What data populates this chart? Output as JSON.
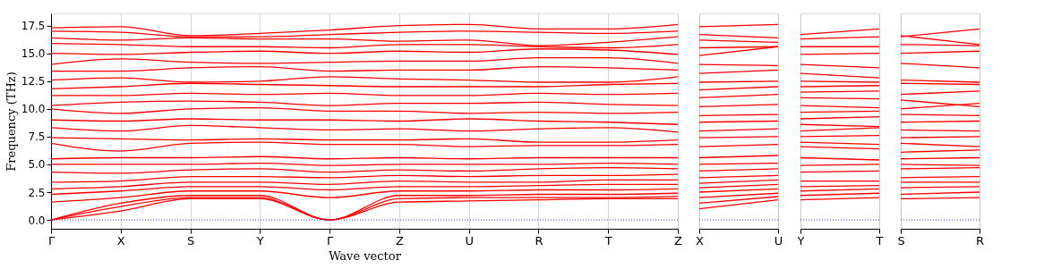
{
  "chart_data": [
    {
      "type": "line",
      "ylabel": "Frequency (THz)",
      "xlabel": "Wave vector",
      "categories": [
        "Γ",
        "X",
        "S",
        "Y",
        "Γ",
        "Z",
        "U",
        "R",
        "T",
        "Z"
      ],
      "ylim": [
        -0.8,
        18.6
      ],
      "yticks": [
        {
          "value": 0,
          "label": "0.0"
        },
        2.5,
        {
          "value": 5,
          "label": "5.0"
        },
        7.5,
        {
          "value": 10,
          "label": "10.0"
        },
        12.5,
        {
          "value": 15,
          "label": "15.0"
        },
        17.5
      ],
      "grid": "x",
      "line_style": "solid",
      "ref_lines": [
        {
          "axis": "y",
          "value": 0,
          "color": "#0000ff",
          "line_style": "dotted"
        }
      ],
      "series": [
        {
          "color": "#ff0000",
          "values": [
            0,
            0.8,
            1.9,
            1.9,
            0,
            1.6,
            1.7,
            1.8,
            1.9,
            1.9
          ]
        },
        {
          "color": "#ff0000",
          "values": [
            0,
            1.2,
            2.0,
            2.0,
            0,
            1.9,
            2.0,
            2.0,
            2.0,
            2.1
          ]
        },
        {
          "color": "#ff0000",
          "values": [
            0,
            1.5,
            2.2,
            2.2,
            0,
            2.2,
            2.2,
            2.3,
            2.3,
            2.4
          ]
        },
        {
          "color": "#ff0000",
          "values": [
            1.6,
            2.0,
            2.6,
            2.6,
            2.0,
            2.6,
            2.6,
            2.7,
            2.7,
            2.8
          ]
        },
        {
          "color": "#ff0000",
          "values": [
            2.3,
            2.6,
            3.0,
            3.0,
            2.7,
            3.0,
            3.0,
            3.1,
            3.2,
            3.2
          ]
        },
        {
          "color": "#ff0000",
          "values": [
            2.8,
            3.0,
            3.4,
            3.4,
            3.2,
            3.5,
            3.4,
            3.4,
            3.6,
            3.6
          ]
        },
        {
          "color": "#ff0000",
          "values": [
            3.4,
            3.5,
            3.9,
            3.9,
            3.8,
            4.0,
            3.9,
            4.0,
            4.0,
            4.1
          ]
        },
        {
          "color": "#ff0000",
          "values": [
            4.3,
            4.2,
            4.5,
            4.6,
            4.3,
            4.5,
            4.4,
            4.6,
            4.7,
            4.6
          ]
        },
        {
          "color": "#ff0000",
          "values": [
            5.0,
            5.0,
            5.0,
            5.1,
            4.9,
            5.0,
            5.0,
            5.0,
            5.1,
            5.0
          ]
        },
        {
          "color": "#ff0000",
          "values": [
            5.5,
            5.6,
            5.6,
            5.7,
            5.5,
            5.6,
            5.5,
            5.6,
            5.6,
            5.6
          ]
        },
        {
          "color": "#ff0000",
          "values": [
            6.9,
            6.2,
            6.9,
            7.0,
            6.8,
            6.8,
            6.6,
            6.7,
            6.7,
            6.8
          ]
        },
        {
          "color": "#ff0000",
          "values": [
            7.4,
            7.3,
            7.2,
            7.3,
            7.2,
            7.2,
            7.3,
            7.0,
            7.0,
            7.2
          ]
        },
        {
          "color": "#ff0000",
          "values": [
            8.3,
            8.0,
            8.5,
            8.3,
            8.1,
            8.2,
            8.0,
            8.2,
            8.3,
            7.9
          ]
        },
        {
          "color": "#ff0000",
          "values": [
            9.0,
            8.9,
            9.1,
            9.0,
            9.0,
            8.9,
            9.1,
            8.9,
            8.8,
            8.6
          ]
        },
        {
          "color": "#ff0000",
          "values": [
            10.0,
            9.6,
            10.0,
            10.1,
            9.8,
            9.8,
            9.6,
            9.7,
            9.6,
            9.7
          ]
        },
        {
          "color": "#ff0000",
          "values": [
            10.3,
            10.6,
            10.7,
            10.6,
            10.3,
            10.5,
            10.5,
            10.6,
            10.4,
            10.3
          ]
        },
        {
          "color": "#ff0000",
          "values": [
            11.2,
            11.2,
            11.4,
            11.3,
            11.4,
            11.2,
            11.2,
            11.4,
            11.3,
            11.4
          ]
        },
        {
          "color": "#ff0000",
          "values": [
            11.8,
            12.0,
            12.3,
            12.2,
            12.1,
            12.0,
            12.0,
            12.0,
            12.2,
            12.3
          ]
        },
        {
          "color": "#ff0000",
          "values": [
            12.6,
            12.8,
            12.4,
            12.5,
            12.9,
            12.7,
            12.6,
            12.4,
            12.4,
            12.9
          ]
        },
        {
          "color": "#ff0000",
          "values": [
            13.4,
            13.4,
            13.7,
            13.8,
            13.4,
            13.5,
            13.5,
            13.8,
            13.7,
            13.5
          ]
        },
        {
          "color": "#ff0000",
          "values": [
            14.0,
            14.5,
            14.2,
            14.1,
            14.2,
            14.3,
            14.3,
            14.6,
            14.6,
            14.1
          ]
        },
        {
          "color": "#ff0000",
          "values": [
            15.0,
            14.9,
            15.1,
            15.2,
            15.0,
            15.2,
            15.1,
            15.4,
            15.3,
            14.9
          ]
        },
        {
          "color": "#ff0000",
          "values": [
            15.9,
            15.8,
            15.6,
            15.6,
            15.5,
            15.8,
            15.8,
            15.6,
            15.5,
            15.8
          ]
        },
        {
          "color": "#ff0000",
          "values": [
            16.4,
            16.2,
            16.4,
            16.3,
            16.3,
            16.1,
            16.2,
            15.7,
            16.0,
            16.5
          ]
        },
        {
          "color": "#ff0000",
          "values": [
            17.0,
            16.9,
            16.5,
            16.5,
            16.7,
            16.9,
            17.0,
            16.9,
            16.8,
            17.0
          ]
        },
        {
          "color": "#ff0000",
          "values": [
            17.3,
            17.4,
            16.6,
            16.8,
            17.1,
            17.5,
            17.6,
            17.2,
            17.2,
            17.6
          ]
        }
      ]
    },
    {
      "type": "line",
      "categories": [
        "X",
        "U"
      ],
      "ylim": [
        -0.8,
        18.6
      ],
      "yticks": [
        0,
        2.5,
        5,
        7.5,
        10,
        12.5,
        15,
        17.5
      ],
      "tick_labels": "x",
      "grid": "x",
      "line_style": "solid",
      "ref_lines": [
        {
          "axis": "y",
          "value": 0,
          "color": "#0000ff",
          "line_style": "dotted"
        }
      ],
      "series": [
        {
          "color": "#ff0000",
          "values": [
            1.0,
            1.8
          ]
        },
        {
          "color": "#ff0000",
          "values": [
            1.5,
            2.1
          ]
        },
        {
          "color": "#ff0000",
          "values": [
            2.0,
            2.4
          ]
        },
        {
          "color": "#ff0000",
          "values": [
            2.5,
            2.8
          ]
        },
        {
          "color": "#ff0000",
          "values": [
            2.9,
            3.2
          ]
        },
        {
          "color": "#ff0000",
          "values": [
            3.3,
            3.6
          ]
        },
        {
          "color": "#ff0000",
          "values": [
            3.8,
            4.0
          ]
        },
        {
          "color": "#ff0000",
          "values": [
            4.4,
            4.6
          ]
        },
        {
          "color": "#ff0000",
          "values": [
            5.0,
            5.1
          ]
        },
        {
          "color": "#ff0000",
          "values": [
            5.6,
            5.8
          ]
        },
        {
          "color": "#ff0000",
          "values": [
            6.6,
            6.8
          ]
        },
        {
          "color": "#ff0000",
          "values": [
            7.4,
            7.5
          ]
        },
        {
          "color": "#ff0000",
          "values": [
            8.0,
            8.2
          ]
        },
        {
          "color": "#ff0000",
          "values": [
            8.8,
            8.9
          ]
        },
        {
          "color": "#ff0000",
          "values": [
            9.4,
            9.5
          ]
        },
        {
          "color": "#ff0000",
          "values": [
            10.2,
            10.4
          ]
        },
        {
          "color": "#ff0000",
          "values": [
            11.0,
            11.3
          ]
        },
        {
          "color": "#ff0000",
          "values": [
            11.7,
            12.0
          ]
        },
        {
          "color": "#ff0000",
          "values": [
            12.4,
            12.5
          ]
        },
        {
          "color": "#ff0000",
          "values": [
            13.2,
            13.5
          ]
        },
        {
          "color": "#ff0000",
          "values": [
            14.0,
            13.9
          ]
        },
        {
          "color": "#ff0000",
          "values": [
            14.8,
            15.6
          ]
        },
        {
          "color": "#ff0000",
          "values": [
            15.5,
            15.6
          ]
        },
        {
          "color": "#ff0000",
          "values": [
            16.2,
            16.0
          ]
        },
        {
          "color": "#ff0000",
          "values": [
            16.7,
            16.4
          ]
        },
        {
          "color": "#ff0000",
          "values": [
            17.4,
            17.6
          ]
        }
      ]
    },
    {
      "type": "line",
      "categories": [
        "Y",
        "T"
      ],
      "ylim": [
        -0.8,
        18.6
      ],
      "yticks": [
        0,
        2.5,
        5,
        7.5,
        10,
        12.5,
        15,
        17.5
      ],
      "tick_labels": "x",
      "grid": "x",
      "line_style": "solid",
      "ref_lines": [
        {
          "axis": "y",
          "value": 0,
          "color": "#0000ff",
          "line_style": "dotted"
        }
      ],
      "series": [
        {
          "color": "#ff0000",
          "values": [
            1.8,
            2.0
          ]
        },
        {
          "color": "#ff0000",
          "values": [
            2.2,
            2.4
          ]
        },
        {
          "color": "#ff0000",
          "values": [
            2.6,
            2.8
          ]
        },
        {
          "color": "#ff0000",
          "values": [
            3.0,
            3.1
          ]
        },
        {
          "color": "#ff0000",
          "values": [
            3.5,
            3.5
          ]
        },
        {
          "color": "#ff0000",
          "values": [
            4.3,
            4.4
          ]
        },
        {
          "color": "#ff0000",
          "values": [
            4.9,
            5.0
          ]
        },
        {
          "color": "#ff0000",
          "values": [
            5.6,
            5.4
          ]
        },
        {
          "color": "#ff0000",
          "values": [
            6.6,
            6.4
          ]
        },
        {
          "color": "#ff0000",
          "values": [
            7.0,
            6.8
          ]
        },
        {
          "color": "#ff0000",
          "values": [
            7.5,
            7.6
          ]
        },
        {
          "color": "#ff0000",
          "values": [
            8.0,
            8.3
          ]
        },
        {
          "color": "#ff0000",
          "values": [
            8.6,
            8.4
          ]
        },
        {
          "color": "#ff0000",
          "values": [
            9.1,
            9.3
          ]
        },
        {
          "color": "#ff0000",
          "values": [
            9.7,
            9.8
          ]
        },
        {
          "color": "#ff0000",
          "values": [
            10.3,
            10.1
          ]
        },
        {
          "color": "#ff0000",
          "values": [
            11.0,
            10.9
          ]
        },
        {
          "color": "#ff0000",
          "values": [
            11.5,
            11.6
          ]
        },
        {
          "color": "#ff0000",
          "values": [
            12.0,
            12.1
          ]
        },
        {
          "color": "#ff0000",
          "values": [
            12.5,
            12.4
          ]
        },
        {
          "color": "#ff0000",
          "values": [
            13.2,
            12.8
          ]
        },
        {
          "color": "#ff0000",
          "values": [
            14.0,
            13.7
          ]
        },
        {
          "color": "#ff0000",
          "values": [
            14.9,
            15.0
          ]
        },
        {
          "color": "#ff0000",
          "values": [
            15.6,
            15.6
          ]
        },
        {
          "color": "#ff0000",
          "values": [
            16.3,
            16.5
          ]
        },
        {
          "color": "#ff0000",
          "values": [
            16.7,
            17.2
          ]
        }
      ]
    },
    {
      "type": "line",
      "categories": [
        "S",
        "R"
      ],
      "ylim": [
        -0.8,
        18.6
      ],
      "yticks": [
        0,
        2.5,
        5,
        7.5,
        10,
        12.5,
        15,
        17.5
      ],
      "tick_labels": "x",
      "grid": "x",
      "line_style": "solid",
      "ref_lines": [
        {
          "axis": "y",
          "value": 0,
          "color": "#0000ff",
          "line_style": "dotted"
        }
      ],
      "series": [
        {
          "color": "#ff0000",
          "values": [
            1.9,
            2.0
          ]
        },
        {
          "color": "#ff0000",
          "values": [
            2.3,
            2.5
          ]
        },
        {
          "color": "#ff0000",
          "values": [
            2.9,
            3.0
          ]
        },
        {
          "color": "#ff0000",
          "values": [
            3.4,
            3.4
          ]
        },
        {
          "color": "#ff0000",
          "values": [
            3.8,
            3.9
          ]
        },
        {
          "color": "#ff0000",
          "values": [
            4.6,
            4.7
          ]
        },
        {
          "color": "#ff0000",
          "values": [
            5.0,
            4.9
          ]
        },
        {
          "color": "#ff0000",
          "values": [
            5.5,
            5.6
          ]
        },
        {
          "color": "#ff0000",
          "values": [
            6.1,
            6.3
          ]
        },
        {
          "color": "#ff0000",
          "values": [
            6.9,
            6.6
          ]
        },
        {
          "color": "#ff0000",
          "values": [
            7.4,
            7.5
          ]
        },
        {
          "color": "#ff0000",
          "values": [
            8.1,
            8.0
          ]
        },
        {
          "color": "#ff0000",
          "values": [
            8.8,
            8.9
          ]
        },
        {
          "color": "#ff0000",
          "values": [
            9.5,
            9.4
          ]
        },
        {
          "color": "#ff0000",
          "values": [
            10.0,
            10.5
          ]
        },
        {
          "color": "#ff0000",
          "values": [
            10.8,
            10.2
          ]
        },
        {
          "color": "#ff0000",
          "values": [
            11.3,
            11.6
          ]
        },
        {
          "color": "#ff0000",
          "values": [
            12.3,
            12.2
          ]
        },
        {
          "color": "#ff0000",
          "values": [
            12.6,
            12.4
          ]
        },
        {
          "color": "#ff0000",
          "values": [
            14.1,
            13.7
          ]
        },
        {
          "color": "#ff0000",
          "values": [
            15.0,
            15.2
          ]
        },
        {
          "color": "#ff0000",
          "values": [
            15.8,
            15.7
          ]
        },
        {
          "color": "#ff0000",
          "values": [
            16.5,
            17.2
          ]
        },
        {
          "color": "#ff0000",
          "values": [
            16.6,
            15.8
          ]
        }
      ]
    }
  ]
}
